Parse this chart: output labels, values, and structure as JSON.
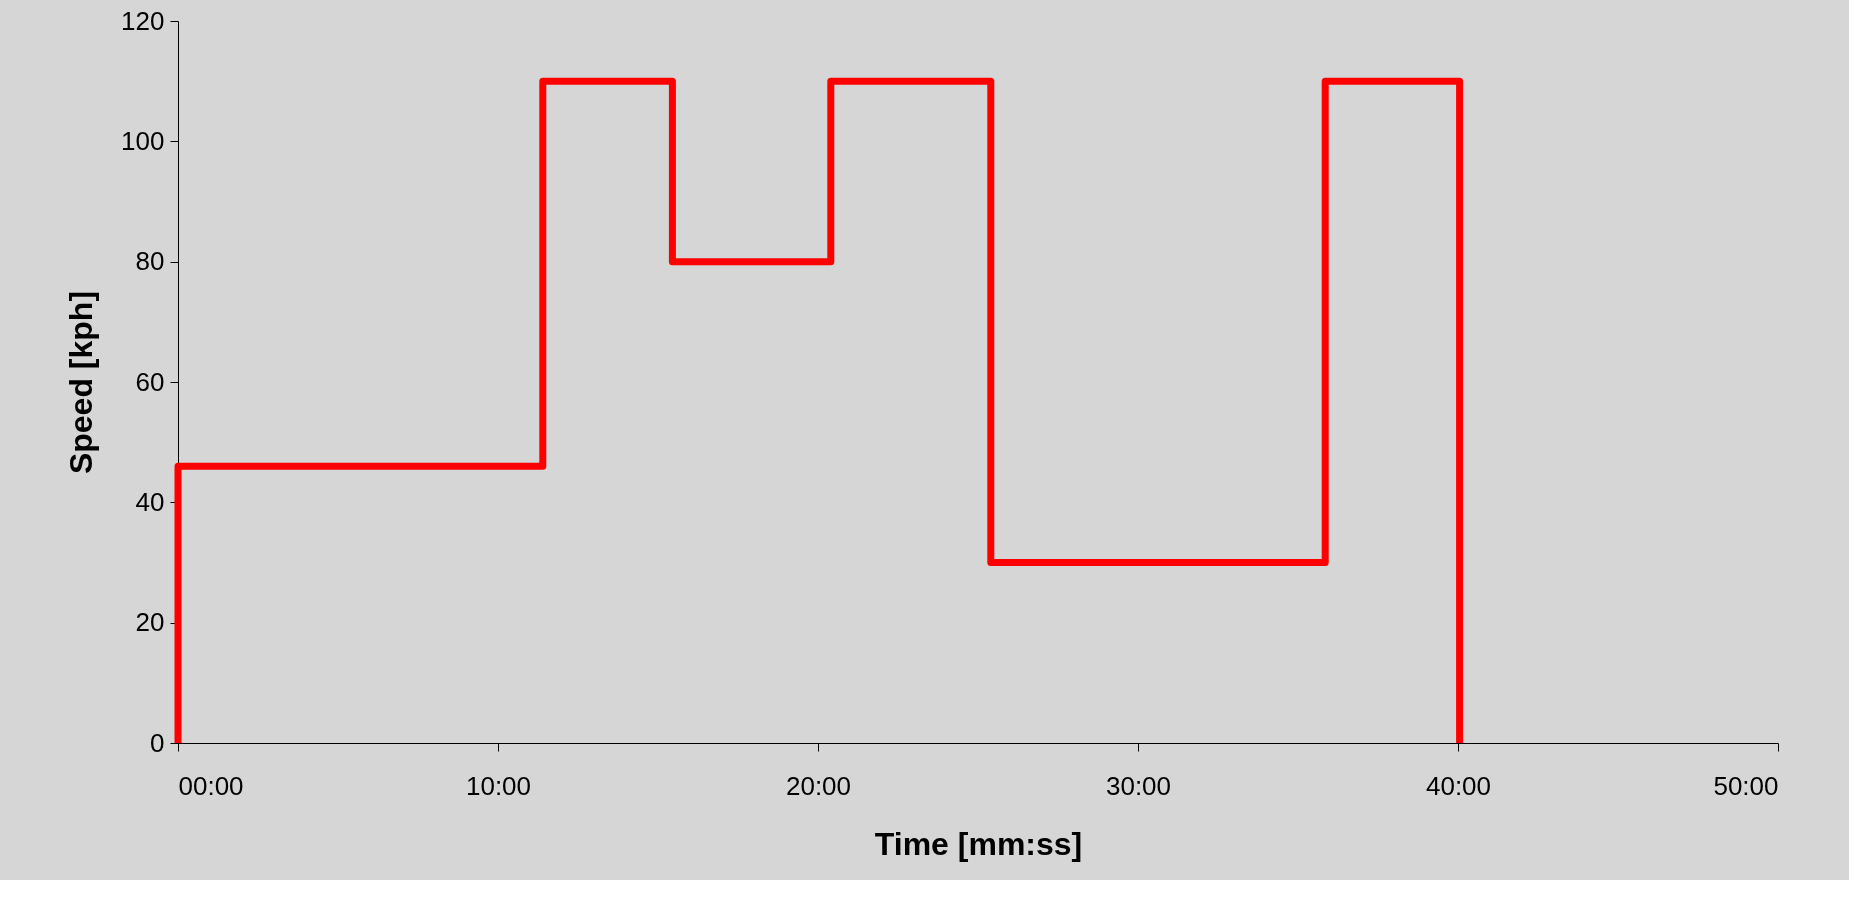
{
  "chart_data": {
    "type": "step",
    "xlabel": "Time [mm:ss]",
    "ylabel": "Speed [kph]",
    "x": [
      0,
      0,
      11.4,
      15.45,
      20.4,
      25.4,
      35.85,
      40.05
    ],
    "series": [
      {
        "color": "#ff0000",
        "values": [
          0,
          46,
          110,
          80,
          110,
          30,
          110,
          0
        ]
      }
    ],
    "xlim": [
      0,
      50
    ],
    "xticks": [
      {
        "value": 0,
        "label": "00:00"
      },
      {
        "value": 10,
        "label": "10:00"
      },
      {
        "value": 20,
        "label": "20:00"
      },
      {
        "value": 30,
        "label": "30:00"
      },
      {
        "value": 40,
        "label": "40:00"
      },
      {
        "value": 50,
        "label": "50:00"
      }
    ],
    "ylim": [
      0,
      120
    ],
    "yticks": [
      0,
      20,
      40,
      60,
      80,
      100,
      120
    ],
    "grid": false,
    "marker": "none",
    "line_style": "solid"
  }
}
